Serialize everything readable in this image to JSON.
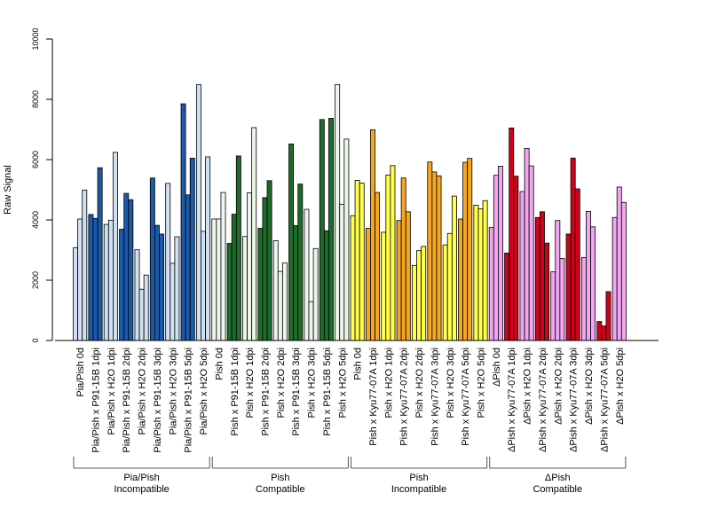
{
  "chart_data": {
    "type": "bar",
    "ylabel": "Raw Signal",
    "ylim": [
      0,
      10000
    ],
    "yticks": [
      0,
      2000,
      4000,
      6000,
      8000,
      10000
    ],
    "grid": false,
    "categories": [
      "Pia/Pish 0d",
      "Pia/Pish x P91-15B 1dpi",
      "Pia/Pish x H2O 1dpi",
      "Pia/Pish x P91-15B 2dpi",
      "Pia/Pish x H2O 2dpi",
      "Pia/Pish x P91-15B 3dpi",
      "Pia/Pish x H2O 3dpi",
      "Pia/Pish x P91-15B 5dpi",
      "Pia/Pish x H2O 5dpi",
      "Pish 0d",
      "Pish x P91-15B 1dpi",
      "Pish x H2O 1dpi",
      "Pish x P91-15B 2dpi",
      "Pish x H2O 2dpi",
      "Pish x P91-15B 3dpi",
      "Pish x H2O 3dpi",
      "Pish x P91-15B 5dpi",
      "Pish x H2O 5dpi",
      "Pish 0d",
      "Pish x Kyu77-07A 1dpi",
      "Pish x H2O 1dpi",
      "Pish x Kyu77-07A 2dpi",
      "Pish x H2O 2dpi",
      "Pish x Kyu77-07A 3dpi",
      "Pish x H2O 3dpi",
      "Pish x Kyu77-07A 5dpi",
      "Pish x H2O 5dpi",
      "ΔPish 0d",
      "ΔPish x Kyu77-07A 1dpi",
      "ΔPish x H2O 1dpi",
      "ΔPish x Kyu77-07A 2dpi",
      "ΔPish x H2O 2dpi",
      "ΔPish x Kyu77-07A 3dpi",
      "ΔPish x H2O 3dpi",
      "ΔPish x Kyu77-07A 5dpi",
      "ΔPish x H2O 5dpi"
    ],
    "replicates": [
      [
        3080,
        4030,
        4990
      ],
      [
        4180,
        4050,
        5730
      ],
      [
        3850,
        3990,
        6240
      ],
      [
        3690,
        4880,
        4670
      ],
      [
        3010,
        1700,
        2170
      ],
      [
        5390,
        3820,
        3530
      ],
      [
        5210,
        2560,
        3440
      ],
      [
        7850,
        4830,
        6050
      ],
      [
        8490,
        3620,
        6090
      ],
      [
        4030,
        4030,
        4910
      ],
      [
        3220,
        4190,
        6120
      ],
      [
        3450,
        4900,
        7060
      ],
      [
        3720,
        4740,
        5300
      ],
      [
        3310,
        2290,
        2570
      ],
      [
        6520,
        3810,
        5190
      ],
      [
        4350,
        1290,
        3050
      ],
      [
        7330,
        3640,
        7370
      ],
      [
        8490,
        4520,
        6680
      ],
      [
        4140,
        5310,
        5220
      ],
      [
        3720,
        6990,
        4910
      ],
      [
        3590,
        5490,
        5800
      ],
      [
        3980,
        5390,
        4270
      ],
      [
        2490,
        2980,
        3120
      ],
      [
        5920,
        5590,
        5460
      ],
      [
        3170,
        3550,
        4790
      ],
      [
        4030,
        5910,
        6040
      ],
      [
        4490,
        4370,
        4640
      ],
      [
        3750,
        5480,
        5780
      ],
      [
        2900,
        7050,
        5450
      ],
      [
        4940,
        6370,
        5790
      ],
      [
        4080,
        4270,
        3230
      ],
      [
        2280,
        3980,
        2720
      ],
      [
        3530,
        6050,
        5030
      ],
      [
        2750,
        4280,
        3770
      ],
      [
        630,
        480,
        1620
      ],
      [
        4080,
        5090,
        4580
      ]
    ],
    "colors": {
      "light_blue": "#cfe0f2",
      "dark_blue": "#1a5aa8",
      "white_green": "#eef6ec",
      "dark_green": "#1e6b2a",
      "light_yellow": "#ffff4d",
      "orange": "#f5a623",
      "light_pink": "#f2a6f0",
      "red": "#d0021b"
    },
    "category_colors": [
      "light_blue",
      "dark_blue",
      "light_blue",
      "dark_blue",
      "light_blue",
      "dark_blue",
      "light_blue",
      "dark_blue",
      "light_blue",
      "white_green",
      "dark_green",
      "white_green",
      "dark_green",
      "white_green",
      "dark_green",
      "white_green",
      "dark_green",
      "white_green",
      "light_yellow",
      "orange",
      "light_yellow",
      "orange",
      "light_yellow",
      "orange",
      "light_yellow",
      "orange",
      "light_yellow",
      "light_pink",
      "red",
      "light_pink",
      "red",
      "light_pink",
      "red",
      "light_pink",
      "red",
      "light_pink"
    ],
    "groups": [
      {
        "line1": "Pia/Pish",
        "line2": "Incompatible",
        "first": 0,
        "last": 8
      },
      {
        "line1": "Pish",
        "line2": "Compatible",
        "first": 9,
        "last": 17
      },
      {
        "line1": "Pish",
        "line2": "Incompatible",
        "first": 18,
        "last": 26
      },
      {
        "line1": "ΔPish",
        "line2": "Compatible",
        "first": 27,
        "last": 35
      }
    ]
  }
}
